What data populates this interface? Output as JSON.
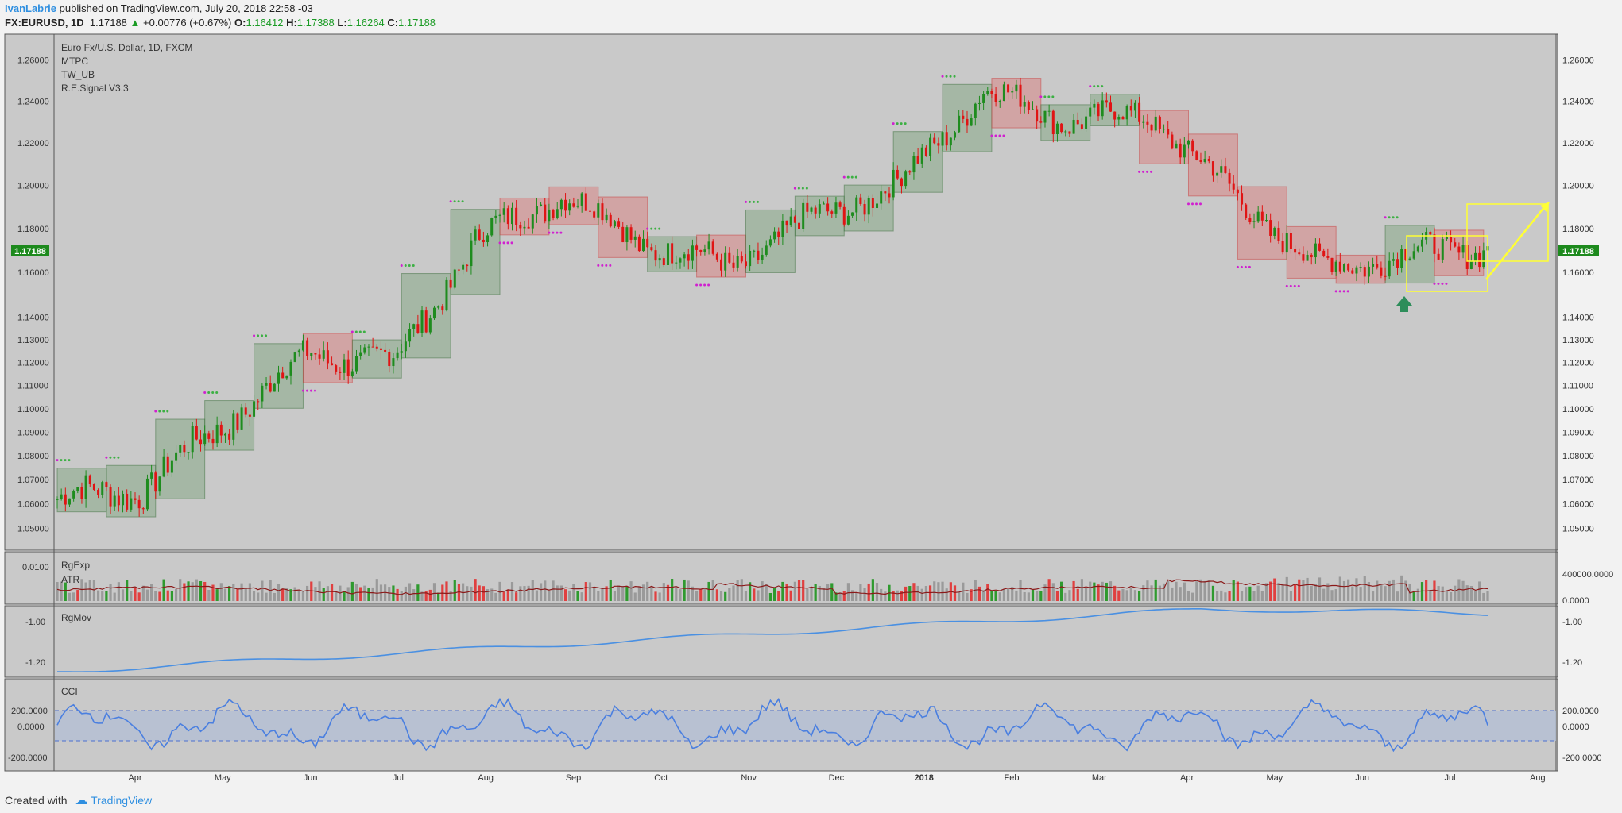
{
  "header": {
    "user": "IvanLabrie",
    "published": " published on TradingView.com, July 20, 2018 22:58 -03",
    "symbol": "FX:EURUSD, 1D",
    "last": "1.17188",
    "change": "+0.00776 (+0.67%)",
    "open_k": "O:",
    "open": "1.16412",
    "high_k": "H:",
    "high": "1.17388",
    "low_k": "L:",
    "low": "1.16264",
    "close_k": "C:",
    "close": "1.17188"
  },
  "legend": {
    "title": "Euro Fx/U.S. Dollar, 1D, FXCM",
    "ind1": "MTPC",
    "ind2": "TW_UB",
    "ind3": "R.E.Signal V3.3",
    "rgexp": "RgExp",
    "atr": "ATR",
    "rgmov": "RgMov",
    "cci": "CCI"
  },
  "price_tag": "1.17188",
  "footer": {
    "created": "Created with",
    "brand": "TradingView"
  },
  "colors": {
    "bg": "#c9c9c9",
    "up": "#1e8c1e",
    "down": "#e01414",
    "line": "#4a90e2",
    "tag": "#1d8a1d",
    "annot": "#ffff33"
  },
  "chart_data": [
    {
      "type": "candlestick",
      "title": "Euro Fx/U.S. Dollar, 1D, FXCM",
      "x_ticks": [
        "Apr",
        "May",
        "Jun",
        "Jul",
        "Aug",
        "Sep",
        "Oct",
        "Nov",
        "Dec",
        "2018",
        "Feb",
        "Mar",
        "Apr",
        "May",
        "Jun",
        "Jul",
        "Aug"
      ],
      "y_ticks": [
        "1.26000",
        "1.24000",
        "1.22000",
        "1.20000",
        "1.18000",
        "1.16000",
        "1.14000",
        "1.13000",
        "1.12000",
        "1.11000",
        "1.10000",
        "1.09000",
        "1.08000",
        "1.07000",
        "1.06000",
        "1.05000"
      ],
      "y_scale": "log",
      "ylim": [
        1.042,
        1.272
      ],
      "close_path_monthly": [
        [
          "Mar",
          1.062
        ],
        [
          "Apr",
          1.066
        ],
        [
          "May",
          1.094
        ],
        [
          "Jun",
          1.124
        ],
        [
          "Jul",
          1.12
        ],
        [
          "Aug",
          1.175
        ],
        [
          "Sep",
          1.196
        ],
        [
          "Oct",
          1.173
        ],
        [
          "Nov",
          1.163
        ],
        [
          "Dec",
          1.185
        ],
        [
          "2018",
          1.2
        ],
        [
          "Feb",
          1.245
        ],
        [
          "Mar",
          1.231
        ],
        [
          "Apr",
          1.233
        ],
        [
          "May",
          1.195
        ],
        [
          "Jun",
          1.162
        ],
        [
          "Jul",
          1.168
        ],
        [
          "Jul-20",
          1.17188
        ]
      ],
      "last": 1.17188
    },
    {
      "type": "bar",
      "title": "RgExp / ATR",
      "y_ticks": [
        "400000.0000",
        "0.0000"
      ],
      "y_ticks_left": [
        "0.0100"
      ]
    },
    {
      "type": "line",
      "title": "RgMov",
      "y_ticks": [
        "-1.00",
        "-1.20"
      ]
    },
    {
      "type": "line",
      "title": "CCI",
      "y_ticks": [
        "200.0000",
        "0.0000",
        "-200.0000"
      ],
      "bands": [
        100,
        -100
      ]
    }
  ]
}
